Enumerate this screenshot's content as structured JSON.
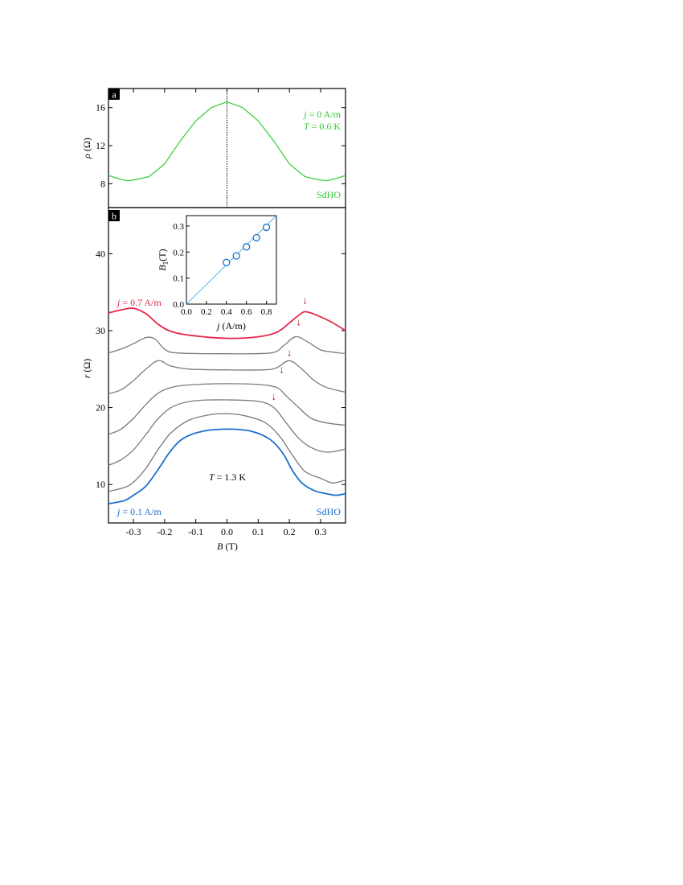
{
  "colors": {
    "green": "#33cc33",
    "red": "#e8274b",
    "blue": "#1a6fcf",
    "gray": "#7a7a7a",
    "light_blue": "#5ab4e6",
    "dark_red": "#a52020"
  },
  "chart_data": [
    {
      "panel": "a",
      "type": "line",
      "xlim": [
        -0.38,
        0.38
      ],
      "ylim": [
        5.5,
        18
      ],
      "yticks": [
        "8",
        "12",
        "16"
      ],
      "ylabel": {
        "symbol": "ρ",
        "unit": "(Ω)"
      },
      "dotted_line_x": 0.0,
      "annotations": {
        "j_sym": "j",
        "j_rest": " = 0 A/m",
        "T_sym": "T",
        "T_rest": " = 0.6 K",
        "sdho": "SdHO"
      },
      "series": [
        {
          "color": "green",
          "smooth_points": [
            [
              -0.32,
              8.2
            ],
            [
              -0.25,
              8.9
            ],
            [
              -0.2,
              10.2
            ],
            [
              -0.15,
              12.5
            ],
            [
              -0.1,
              14.6
            ],
            [
              -0.05,
              16.0
            ],
            [
              0.0,
              16.6
            ],
            [
              0.05,
              16.0
            ],
            [
              0.1,
              14.6
            ],
            [
              0.15,
              12.5
            ],
            [
              0.2,
              10.2
            ],
            [
              0.25,
              8.9
            ],
            [
              0.32,
              8.2
            ]
          ],
          "oscillation": {
            "onset_B": 0.22,
            "period_inv_B": 0.6,
            "amplitude_at_edge": 2.1,
            "base_edge": 9.6
          }
        }
      ]
    },
    {
      "panel": "b",
      "type": "line",
      "xlim": [
        -0.38,
        0.38
      ],
      "ylim": [
        5,
        46
      ],
      "xticks": [
        "-0.3",
        "-0.2",
        "-0.1",
        "0.0",
        "0.1",
        "0.2",
        "0.3"
      ],
      "yticks": [
        "10",
        "20",
        "30",
        "40"
      ],
      "xlabel": {
        "symbol": "B",
        "unit": "(T)"
      },
      "ylabel": {
        "symbol": "r",
        "unit": "(Ω)"
      },
      "annotations": {
        "top_j_sym": "j",
        "top_j_rest": " = 0.7 A/m",
        "bottom_j_sym": "j",
        "bottom_j_rest": " = 0.1 A/m",
        "T_sym": "T",
        "T_rest": " = 1.3 K",
        "sdho": "SdHO"
      },
      "arrows_B1": [
        [
          0.25,
          33.5
        ],
        [
          0.23,
          30.7
        ],
        [
          0.2,
          26.7
        ],
        [
          0.175,
          24.5
        ],
        [
          0.15,
          21.0
        ]
      ],
      "series": [
        {
          "name": "j = 0.7 A/m",
          "color": "red",
          "points": [
            [
              -0.38,
              32.3
            ],
            [
              -0.34,
              32.7
            ],
            [
              -0.3,
              32.9
            ],
            [
              -0.26,
              32.2
            ],
            [
              -0.22,
              30.8
            ],
            [
              -0.18,
              29.9
            ],
            [
              -0.12,
              29.4
            ],
            [
              0.0,
              29.0
            ],
            [
              0.1,
              29.2
            ],
            [
              0.16,
              29.8
            ],
            [
              0.2,
              31.0
            ],
            [
              0.24,
              32.3
            ],
            [
              0.26,
              32.4
            ],
            [
              0.3,
              31.8
            ],
            [
              0.34,
              31.0
            ],
            [
              0.38,
              30.0
            ]
          ]
        },
        {
          "color": "gray",
          "points": [
            [
              -0.38,
              27.1
            ],
            [
              -0.34,
              27.6
            ],
            [
              -0.3,
              28.3
            ],
            [
              -0.26,
              29.1
            ],
            [
              -0.23,
              28.9
            ],
            [
              -0.2,
              27.6
            ],
            [
              -0.16,
              27.1
            ],
            [
              0.0,
              27.0
            ],
            [
              0.14,
              27.1
            ],
            [
              0.18,
              28.0
            ],
            [
              0.22,
              29.2
            ],
            [
              0.26,
              28.5
            ],
            [
              0.3,
              27.5
            ],
            [
              0.34,
              27.2
            ],
            [
              0.38,
              27.0
            ]
          ]
        },
        {
          "color": "gray",
          "points": [
            [
              -0.38,
              21.8
            ],
            [
              -0.34,
              22.3
            ],
            [
              -0.3,
              23.5
            ],
            [
              -0.26,
              25.0
            ],
            [
              -0.22,
              26.1
            ],
            [
              -0.18,
              25.4
            ],
            [
              -0.12,
              25.0
            ],
            [
              0.0,
              24.9
            ],
            [
              0.12,
              24.9
            ],
            [
              0.16,
              25.2
            ],
            [
              0.2,
              26.1
            ],
            [
              0.24,
              25.0
            ],
            [
              0.28,
              23.5
            ],
            [
              0.32,
              22.6
            ],
            [
              0.38,
              22.0
            ]
          ]
        },
        {
          "color": "gray",
          "points": [
            [
              -0.38,
              16.5
            ],
            [
              -0.34,
              17.2
            ],
            [
              -0.3,
              18.6
            ],
            [
              -0.26,
              20.4
            ],
            [
              -0.22,
              21.9
            ],
            [
              -0.17,
              22.7
            ],
            [
              -0.1,
              23.0
            ],
            [
              0.0,
              23.1
            ],
            [
              0.1,
              23.0
            ],
            [
              0.16,
              22.6
            ],
            [
              0.19,
              21.5
            ],
            [
              0.23,
              20.0
            ],
            [
              0.27,
              18.6
            ],
            [
              0.32,
              18.0
            ],
            [
              0.38,
              17.7
            ]
          ]
        },
        {
          "color": "gray",
          "points": [
            [
              -0.38,
              12.5
            ],
            [
              -0.34,
              13.2
            ],
            [
              -0.3,
              14.5
            ],
            [
              -0.26,
              16.5
            ],
            [
              -0.22,
              18.6
            ],
            [
              -0.17,
              20.2
            ],
            [
              -0.1,
              20.9
            ],
            [
              0.0,
              21.0
            ],
            [
              0.1,
              20.8
            ],
            [
              0.15,
              20.0
            ],
            [
              0.19,
              18.0
            ],
            [
              0.23,
              16.0
            ],
            [
              0.27,
              14.8
            ],
            [
              0.32,
              14.2
            ],
            [
              0.38,
              14.6
            ]
          ]
        },
        {
          "color": "gray",
          "points": [
            [
              -0.38,
              9.1
            ],
            [
              -0.33,
              9.6
            ],
            [
              -0.3,
              10.3
            ],
            [
              -0.26,
              12.1
            ],
            [
              -0.22,
              14.6
            ],
            [
              -0.18,
              16.7
            ],
            [
              -0.12,
              18.4
            ],
            [
              -0.05,
              19.1
            ],
            [
              0.0,
              19.2
            ],
            [
              0.05,
              19.0
            ],
            [
              0.12,
              18.1
            ],
            [
              0.17,
              16.2
            ],
            [
              0.21,
              13.8
            ],
            [
              0.25,
              11.7
            ],
            [
              0.3,
              10.8
            ],
            [
              0.34,
              10.2
            ],
            [
              0.38,
              10.6
            ]
          ]
        },
        {
          "name": "j = 0.1 A/m",
          "color": "blue",
          "points": [
            [
              -0.38,
              7.5
            ],
            [
              -0.33,
              7.9
            ],
            [
              -0.3,
              8.6
            ],
            [
              -0.26,
              9.8
            ],
            [
              -0.22,
              12.0
            ],
            [
              -0.18,
              14.4
            ],
            [
              -0.14,
              16.0
            ],
            [
              -0.08,
              16.9
            ],
            [
              0.0,
              17.2
            ],
            [
              0.08,
              16.9
            ],
            [
              0.14,
              15.8
            ],
            [
              0.18,
              14.0
            ],
            [
              0.21,
              11.8
            ],
            [
              0.24,
              10.2
            ],
            [
              0.28,
              9.2
            ],
            [
              0.32,
              8.8
            ],
            [
              0.35,
              8.6
            ],
            [
              0.38,
              8.8
            ]
          ]
        }
      ]
    },
    {
      "panel": "b-inset",
      "type": "scatter",
      "xlim": [
        0.0,
        0.9
      ],
      "ylim": [
        0.0,
        0.34
      ],
      "xticks": [
        "0.0",
        "0.2",
        "0.4",
        "0.6",
        "0.8"
      ],
      "yticks": [
        "0.0",
        "0.1",
        "0.2",
        "0.3"
      ],
      "xlabel": {
        "symbol": "j",
        "unit": "(A/m)"
      },
      "ylabel": {
        "symbol": "B",
        "sub": "1",
        "unit": "(T)"
      },
      "points": [
        [
          0.4,
          0.16
        ],
        [
          0.5,
          0.185
        ],
        [
          0.6,
          0.22
        ],
        [
          0.7,
          0.255
        ],
        [
          0.8,
          0.295
        ]
      ],
      "fit_line": [
        [
          0.0,
          0.0
        ],
        [
          0.9,
          0.34
        ]
      ]
    }
  ]
}
